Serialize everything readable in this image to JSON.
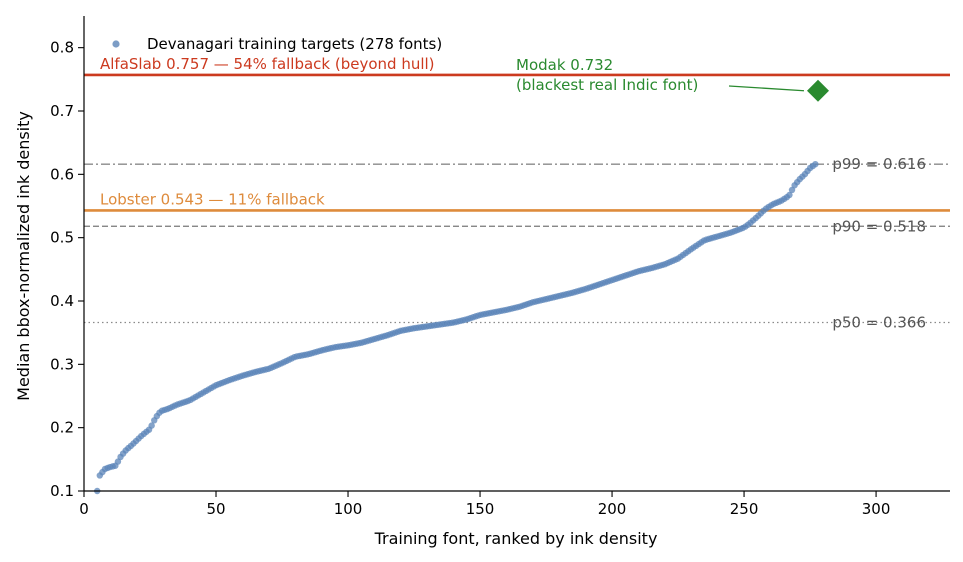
{
  "chart_data": {
    "type": "scatter",
    "xlabel": "Training font, ranked by ink density",
    "ylabel": "Median bbox-normalized ink density",
    "xlim": [
      0,
      328
    ],
    "ylim": [
      0.1,
      0.85
    ],
    "x_ticks": [
      0,
      50,
      100,
      150,
      200,
      250,
      300
    ],
    "y_ticks": [
      0.1,
      0.2,
      0.3,
      0.4,
      0.5,
      0.6,
      0.7,
      0.8
    ],
    "grid": false,
    "legend_position": "top-left",
    "series": [
      {
        "name": "Devanagari training targets (278 fonts)",
        "color": "#5b84b8",
        "n": 278,
        "curve_points": [
          [
            5,
            0.1
          ],
          [
            6,
            0.125
          ],
          [
            8,
            0.135
          ],
          [
            10,
            0.138
          ],
          [
            12,
            0.14
          ],
          [
            14,
            0.155
          ],
          [
            16,
            0.165
          ],
          [
            18,
            0.172
          ],
          [
            20,
            0.18
          ],
          [
            22,
            0.188
          ],
          [
            25,
            0.198
          ],
          [
            27,
            0.215
          ],
          [
            29,
            0.226
          ],
          [
            32,
            0.23
          ],
          [
            35,
            0.236
          ],
          [
            40,
            0.243
          ],
          [
            45,
            0.255
          ],
          [
            50,
            0.267
          ],
          [
            55,
            0.275
          ],
          [
            60,
            0.282
          ],
          [
            65,
            0.288
          ],
          [
            70,
            0.293
          ],
          [
            75,
            0.302
          ],
          [
            80,
            0.312
          ],
          [
            85,
            0.316
          ],
          [
            90,
            0.322
          ],
          [
            95,
            0.327
          ],
          [
            100,
            0.33
          ],
          [
            105,
            0.334
          ],
          [
            110,
            0.34
          ],
          [
            115,
            0.346
          ],
          [
            120,
            0.353
          ],
          [
            125,
            0.357
          ],
          [
            130,
            0.36
          ],
          [
            135,
            0.363
          ],
          [
            140,
            0.366
          ],
          [
            145,
            0.371
          ],
          [
            150,
            0.378
          ],
          [
            155,
            0.382
          ],
          [
            160,
            0.386
          ],
          [
            165,
            0.391
          ],
          [
            170,
            0.398
          ],
          [
            175,
            0.403
          ],
          [
            180,
            0.408
          ],
          [
            185,
            0.413
          ],
          [
            190,
            0.419
          ],
          [
            195,
            0.426
          ],
          [
            200,
            0.433
          ],
          [
            205,
            0.44
          ],
          [
            210,
            0.447
          ],
          [
            215,
            0.452
          ],
          [
            220,
            0.458
          ],
          [
            225,
            0.467
          ],
          [
            230,
            0.482
          ],
          [
            235,
            0.496
          ],
          [
            240,
            0.502
          ],
          [
            245,
            0.508
          ],
          [
            250,
            0.516
          ],
          [
            252,
            0.522
          ],
          [
            255,
            0.533
          ],
          [
            258,
            0.545
          ],
          [
            261,
            0.553
          ],
          [
            264,
            0.558
          ],
          [
            267,
            0.566
          ],
          [
            269,
            0.582
          ],
          [
            271,
            0.592
          ],
          [
            273,
            0.6
          ],
          [
            275,
            0.61
          ],
          [
            277,
            0.616
          ]
        ]
      }
    ],
    "reference_lines": [
      {
        "y": 0.757,
        "label": "AlfaSlab 0.757 — 54% fallback (beyond hull)",
        "color": "#cc3a1f",
        "style": "solid"
      },
      {
        "y": 0.543,
        "label": "Lobster 0.543 — 11% fallback",
        "color": "#de8b3c",
        "style": "solid"
      },
      {
        "y": 0.616,
        "label": "p99 = 0.616",
        "color": "#8a8a8a",
        "style": "dashdot"
      },
      {
        "y": 0.518,
        "label": "p90 = 0.518",
        "color": "#777777",
        "style": "dashed"
      },
      {
        "y": 0.366,
        "label": "p50 = 0.366",
        "color": "#8a8a8a",
        "style": "dotted"
      }
    ],
    "highlight_point": {
      "x": 278,
      "y": 0.732,
      "color": "#2a8a2f",
      "label_line1": "Modak 0.732",
      "label_line2": "(blackest real Indic font)"
    }
  }
}
